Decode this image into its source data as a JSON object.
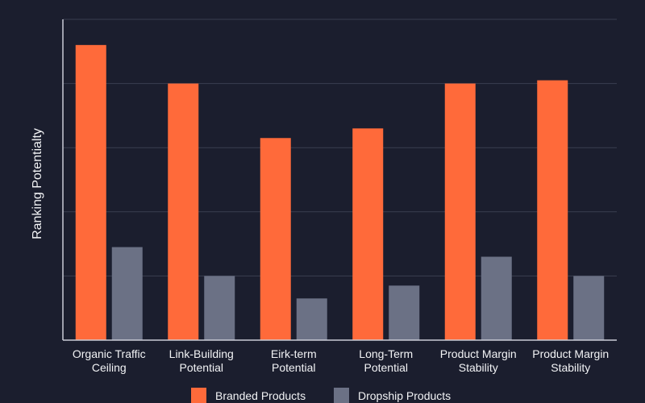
{
  "chart_data": {
    "type": "bar",
    "title": "",
    "xlabel": "",
    "ylabel": "Ranking Potentialty",
    "ylim": [
      0,
      100
    ],
    "grid": true,
    "legend_position": "bottom-center",
    "categories": [
      [
        "Organic Traffic",
        "Ceiling"
      ],
      [
        "Link-Building",
        "Potential"
      ],
      [
        "Eirk-term",
        "Potential"
      ],
      [
        "Long-Term",
        "Potential"
      ],
      [
        "Product Margin",
        "Stability"
      ],
      [
        "Product Margin",
        "Stability"
      ]
    ],
    "series": [
      {
        "name": "Branded Products",
        "color": "#ff6a3a",
        "values": [
          92,
          80,
          63,
          66,
          80,
          81
        ]
      },
      {
        "name": "Dropship Products",
        "color": "#6b7185",
        "values": [
          29,
          20,
          13,
          17,
          26,
          20
        ]
      }
    ]
  },
  "colors": {
    "background": "#1b1e2e",
    "gridline": "#3a3e50",
    "axis": "#c9ccd6",
    "text": "#f2f3f5"
  }
}
